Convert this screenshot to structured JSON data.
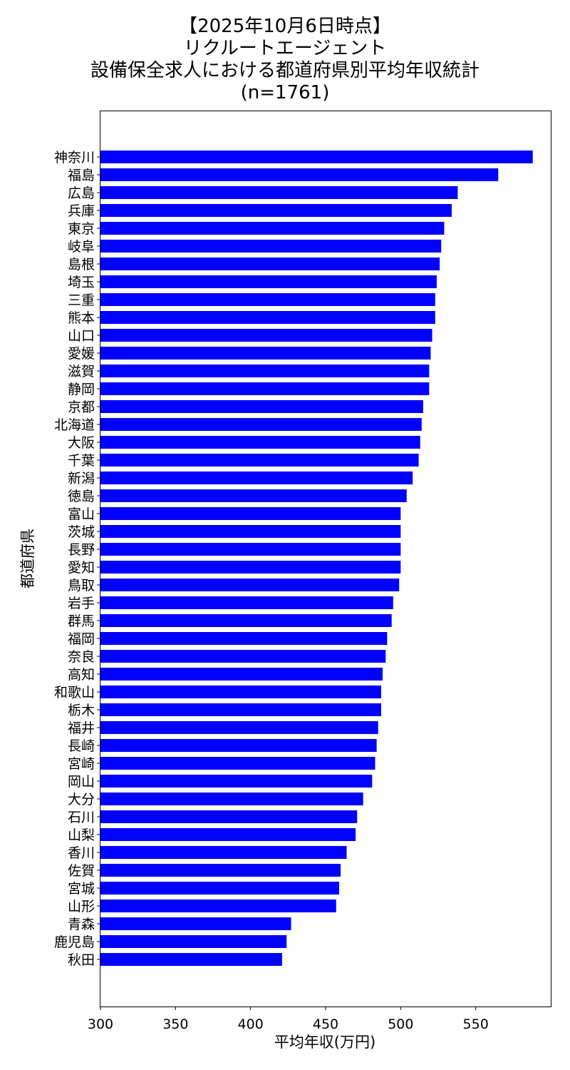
{
  "chart_data": {
    "type": "bar",
    "orientation": "horizontal",
    "title_lines": [
      "【2025年10月6日時点】",
      "リクルートエージェント",
      "設備保全求人における都道府県別平均年収統計",
      "(n=1761)"
    ],
    "xlabel": "平均年収(万円)",
    "ylabel": "都道府県",
    "xlim": [
      300,
      600
    ],
    "xticks": [
      300,
      350,
      400,
      450,
      500,
      550
    ],
    "bar_color": "#0000ff",
    "grid": false,
    "categories": [
      "神奈川",
      "福島",
      "広島",
      "兵庫",
      "東京",
      "岐阜",
      "島根",
      "埼玉",
      "三重",
      "熊本",
      "山口",
      "愛媛",
      "滋賀",
      "静岡",
      "京都",
      "北海道",
      "大阪",
      "千葉",
      "新潟",
      "徳島",
      "富山",
      "茨城",
      "長野",
      "愛知",
      "鳥取",
      "岩手",
      "群馬",
      "福岡",
      "奈良",
      "高知",
      "和歌山",
      "栃木",
      "福井",
      "長崎",
      "宮崎",
      "岡山",
      "大分",
      "石川",
      "山梨",
      "香川",
      "佐賀",
      "宮城",
      "山形",
      "青森",
      "鹿児島",
      "秋田"
    ],
    "values": [
      588,
      565,
      538,
      534,
      529,
      527,
      526,
      524,
      523,
      523,
      521,
      520,
      519,
      519,
      515,
      514,
      513,
      512,
      508,
      504,
      500,
      500,
      500,
      500,
      499,
      495,
      494,
      491,
      490,
      488,
      487,
      487,
      485,
      484,
      483,
      481,
      475,
      471,
      470,
      464,
      460,
      459,
      457,
      427,
      424,
      421
    ]
  }
}
